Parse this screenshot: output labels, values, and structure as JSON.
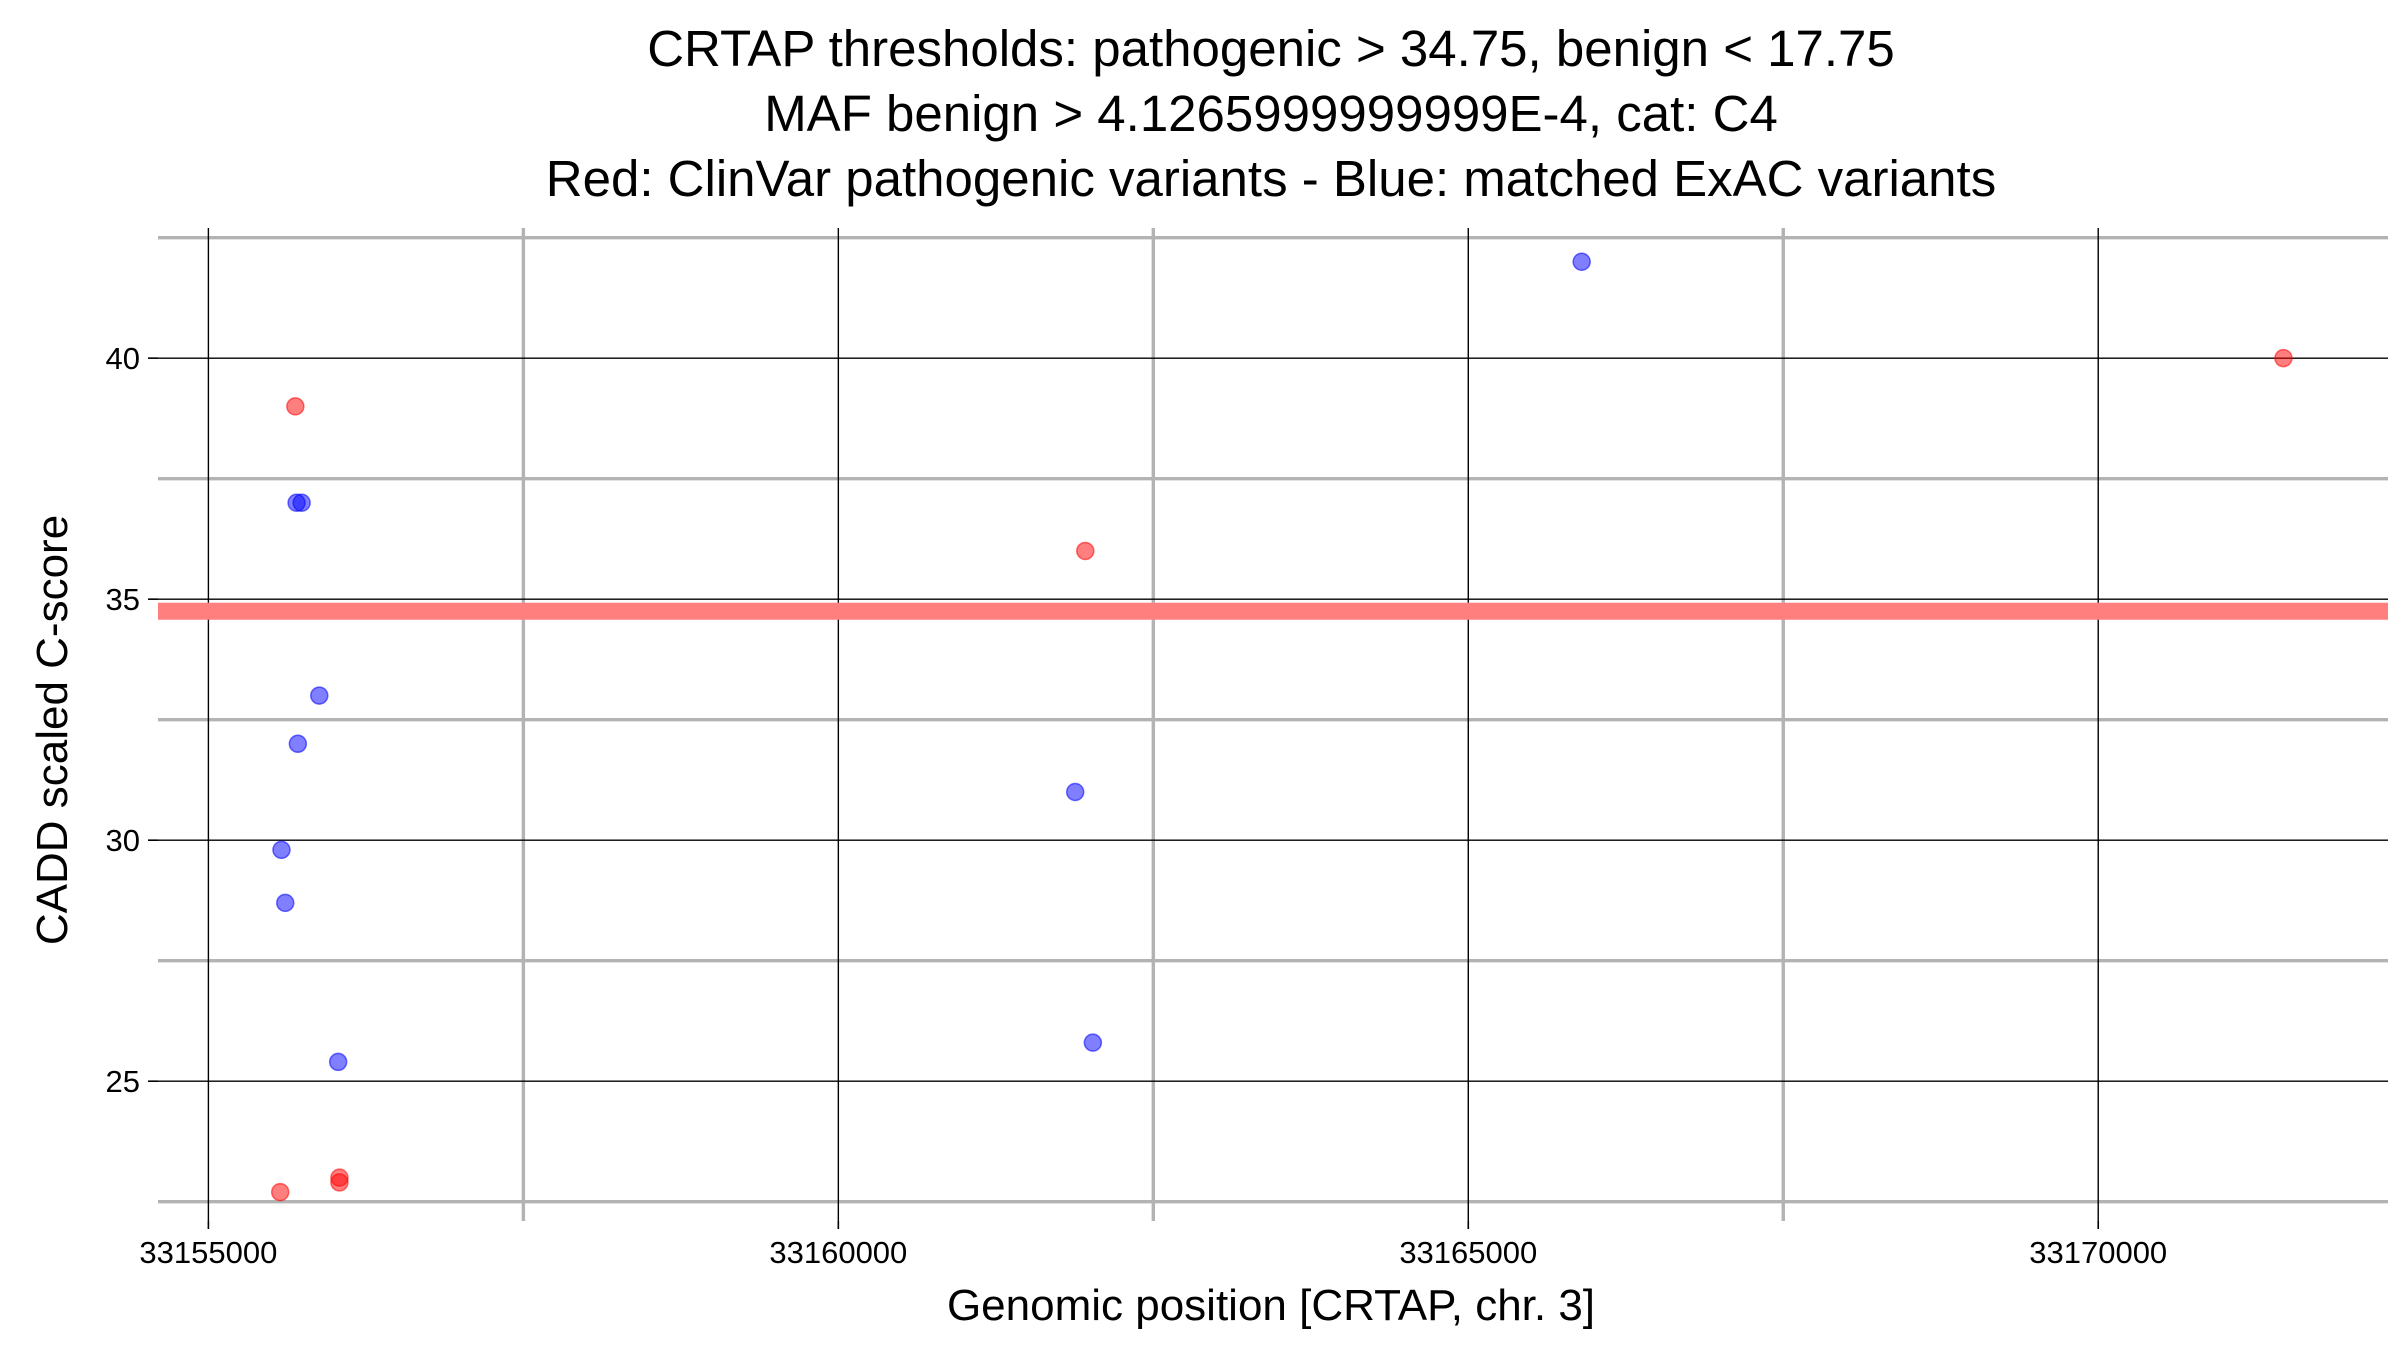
{
  "chart_data": {
    "type": "scatter",
    "title_lines": [
      "CRTAP thresholds: pathogenic > 34.75, benign < 17.75",
      "MAF benign > 4.1265999999999E-4, cat: C4",
      "Red: ClinVar pathogenic variants - Blue: matched ExAC variants"
    ],
    "xlabel": "Genomic position [CRTAP, chr. 3]",
    "ylabel": "CADD scaled C-score",
    "xlim": [
      33154600,
      33172300
    ],
    "ylim": [
      22.1,
      42.7
    ],
    "x_ticks": [
      33155000,
      33160000,
      33165000,
      33170000
    ],
    "x_tick_labels": [
      "33155000",
      "33160000",
      "33165000",
      "33170000"
    ],
    "x_minor_ticks": [
      33157500,
      33162500,
      33167500
    ],
    "y_ticks": [
      25,
      30,
      35,
      40
    ],
    "y_tick_labels": [
      "25",
      "30",
      "35",
      "40"
    ],
    "y_minor_ticks": [
      22.5,
      27.5,
      32.5,
      37.5,
      42.5
    ],
    "threshold": {
      "name": "pathogenic threshold",
      "y": 34.75,
      "color": "#ff7f7f"
    },
    "series": [
      {
        "name": "ClinVar pathogenic variants",
        "color": "#ff0000",
        "points": [
          {
            "x": 33155690,
            "y": 39
          },
          {
            "x": 33155570,
            "y": 22.7
          },
          {
            "x": 33156040,
            "y": 23.0
          },
          {
            "x": 33156040,
            "y": 22.9
          },
          {
            "x": 33161960,
            "y": 36
          },
          {
            "x": 33171470,
            "y": 40
          }
        ]
      },
      {
        "name": "matched ExAC variants",
        "color": "#0000ff",
        "points": [
          {
            "x": 33155700,
            "y": 37
          },
          {
            "x": 33155740,
            "y": 37
          },
          {
            "x": 33155880,
            "y": 33
          },
          {
            "x": 33155710,
            "y": 32
          },
          {
            "x": 33155580,
            "y": 29.8
          },
          {
            "x": 33155610,
            "y": 28.7
          },
          {
            "x": 33156030,
            "y": 25.4
          },
          {
            "x": 33161880,
            "y": 31
          },
          {
            "x": 33162020,
            "y": 25.8
          },
          {
            "x": 33165900,
            "y": 42
          }
        ]
      }
    ]
  }
}
